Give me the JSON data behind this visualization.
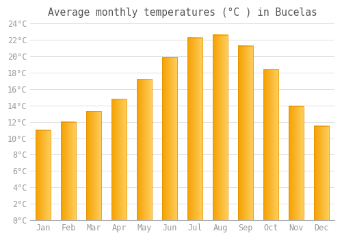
{
  "title": "Average monthly temperatures (°C ) in Bucelas",
  "months": [
    "Jan",
    "Feb",
    "Mar",
    "Apr",
    "May",
    "Jun",
    "Jul",
    "Aug",
    "Sep",
    "Oct",
    "Nov",
    "Dec"
  ],
  "values": [
    11.0,
    12.0,
    13.3,
    14.8,
    17.2,
    19.9,
    22.3,
    22.6,
    21.3,
    18.4,
    13.9,
    11.5
  ],
  "bar_color_left": "#F5A000",
  "bar_color_right": "#FFD060",
  "bar_edge_color": "#E09000",
  "background_color": "#FFFFFF",
  "plot_bg_color": "#F5F5F5",
  "grid_color": "#E0E0E0",
  "tick_label_color": "#999999",
  "title_color": "#555555",
  "ylim": [
    0,
    24
  ],
  "ytick_step": 2,
  "title_fontsize": 10.5,
  "tick_fontsize": 8.5,
  "bar_width": 0.6
}
